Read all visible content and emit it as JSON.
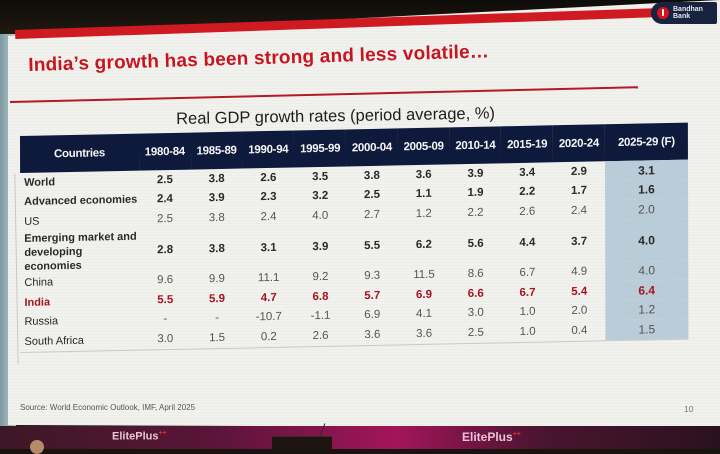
{
  "slide": {
    "brand": {
      "name_line1": "Bandhan",
      "name_line2": "Bank",
      "logo_icon": "bandhan-bank-logo"
    },
    "title": "India’s growth has been strong and less volatile…",
    "subtitle": "Real GDP growth rates (period average, %)",
    "source": "Source: World Economic Outlook, IMF, April 2025",
    "page_number": "10",
    "colors": {
      "accent_red": "#d01a22",
      "header_navy": "#0e1a3c",
      "forecast_highlight": "#b9ccd8",
      "india_text": "#a5151f"
    }
  },
  "table": {
    "headers": [
      "Countries",
      "1980-84",
      "1985-89",
      "1990-94",
      "1995-99",
      "2000-04",
      "2005-09",
      "2010-14",
      "2015-19",
      "2020-24",
      "2025-29 (F)"
    ],
    "rows": [
      {
        "label": "World",
        "values": [
          "2.5",
          "3.8",
          "2.6",
          "3.5",
          "3.8",
          "3.6",
          "3.9",
          "3.4",
          "2.9",
          "3.1"
        ]
      },
      {
        "label": "Advanced economies",
        "values": [
          "2.4",
          "3.9",
          "2.3",
          "3.2",
          "2.5",
          "1.1",
          "1.9",
          "2.2",
          "1.7",
          "1.6"
        ]
      },
      {
        "label": "US",
        "values": [
          "2.5",
          "3.8",
          "2.4",
          "4.0",
          "2.7",
          "1.2",
          "2.2",
          "2.6",
          "2.4",
          "2.0"
        ]
      },
      {
        "label": "Emerging market and developing economies",
        "values": [
          "2.8",
          "3.8",
          "3.1",
          "3.9",
          "5.5",
          "6.2",
          "5.6",
          "4.4",
          "3.7",
          "4.0"
        ]
      },
      {
        "label": "China",
        "values": [
          "9.6",
          "9.9",
          "11.1",
          "9.2",
          "9.3",
          "11.5",
          "8.6",
          "6.7",
          "4.9",
          "4.0"
        ]
      },
      {
        "label": "India",
        "values": [
          "5.5",
          "5.9",
          "4.7",
          "6.8",
          "5.7",
          "6.9",
          "6.6",
          "6.7",
          "5.4",
          "6.4"
        ]
      },
      {
        "label": "Russia",
        "values": [
          "-",
          "-",
          "-10.7",
          "-1.1",
          "6.9",
          "4.1",
          "3.0",
          "1.0",
          "2.0",
          "1.2"
        ]
      },
      {
        "label": "South Africa",
        "values": [
          "3.0",
          "1.5",
          "0.2",
          "2.6",
          "3.6",
          "3.6",
          "2.5",
          "1.0",
          "0.4",
          "1.5"
        ]
      }
    ]
  },
  "backdrop": {
    "event_logo_1": "ElitePlus",
    "event_logo_2": "ElitePlus",
    "superscript": "++"
  }
}
